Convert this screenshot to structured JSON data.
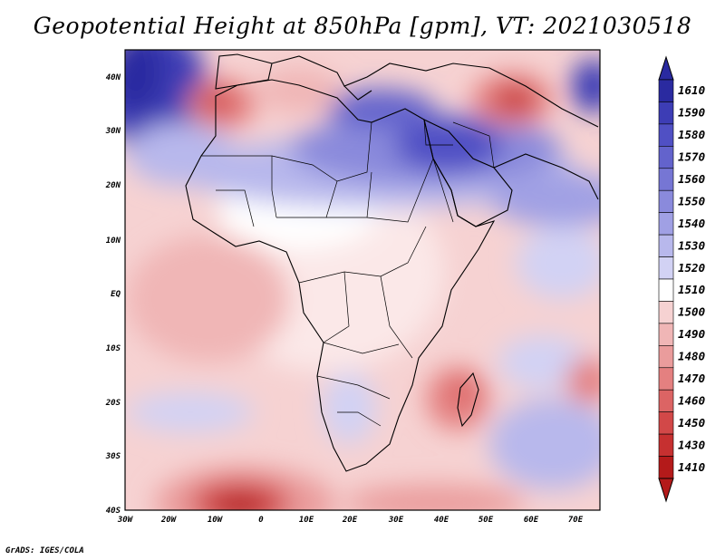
{
  "title": "Geopotential Height at 850hPa [gpm], VT: 2021030518",
  "credit": "GrADS: IGES/COLA",
  "map": {
    "lon_labels": [
      "30W",
      "20W",
      "10W",
      "0",
      "10E",
      "20E",
      "30E",
      "40E",
      "50E",
      "60E",
      "70E"
    ],
    "lat_labels": [
      "40N",
      "30N",
      "20N",
      "10N",
      "EQ",
      "10S",
      "20S",
      "30S",
      "40S"
    ]
  },
  "colorbar": {
    "levels": [
      "1610",
      "1590",
      "1580",
      "1570",
      "1560",
      "1550",
      "1540",
      "1530",
      "1520",
      "1510",
      "1500",
      "1490",
      "1480",
      "1470",
      "1460",
      "1450",
      "1430",
      "1410"
    ],
    "colors": [
      "#2a2aa0",
      "#3d3db5",
      "#5050c4",
      "#6363cc",
      "#7676d4",
      "#8a8adc",
      "#a0a0e4",
      "#b8b8ec",
      "#d2d2f4",
      "#ffffff",
      "#f6d2d2",
      "#f0b6b6",
      "#ea9c9c",
      "#e48080",
      "#dc6464",
      "#d24848",
      "#c63030",
      "#b41a1a"
    ]
  }
}
